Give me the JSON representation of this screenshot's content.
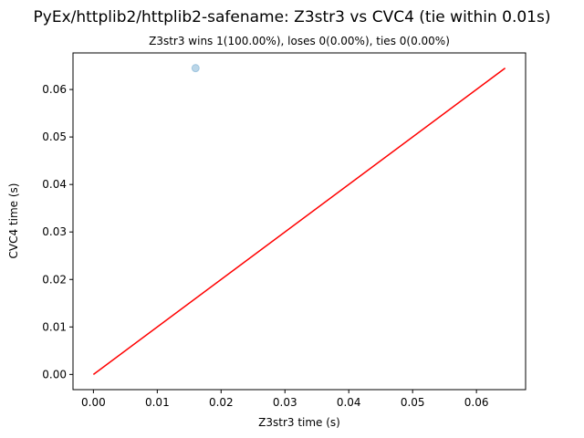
{
  "chart_data": {
    "type": "scatter",
    "title": "PyEx/httplib2/httplib2-safename: Z3str3 vs CVC4 (tie within 0.01s)",
    "subtitle": "Z3str3 wins 1(100.00%), loses 0(0.00%), ties 0(0.00%)",
    "xlabel": "Z3str3 time (s)",
    "ylabel": "CVC4 time (s)",
    "xlim": [
      -0.0032,
      0.0677
    ],
    "ylim": [
      -0.0032,
      0.0677
    ],
    "x_ticks": [
      0.0,
      0.01,
      0.02,
      0.03,
      0.04,
      0.05,
      0.06
    ],
    "x_tick_labels": [
      "0.00",
      "0.01",
      "0.02",
      "0.03",
      "0.04",
      "0.05",
      "0.06"
    ],
    "y_ticks": [
      0.0,
      0.01,
      0.02,
      0.03,
      0.04,
      0.05,
      0.06
    ],
    "y_tick_labels": [
      "0.00",
      "0.01",
      "0.02",
      "0.03",
      "0.04",
      "0.05",
      "0.06"
    ],
    "grid": false,
    "points": [
      {
        "x": 0.016,
        "y": 0.0645
      }
    ],
    "reference_line": {
      "x": [
        0.0,
        0.0645
      ],
      "y": [
        0.0,
        0.0645
      ]
    },
    "colors": {
      "point": "#1f77b4",
      "line": "#ff0000",
      "axes": "#000000"
    }
  }
}
